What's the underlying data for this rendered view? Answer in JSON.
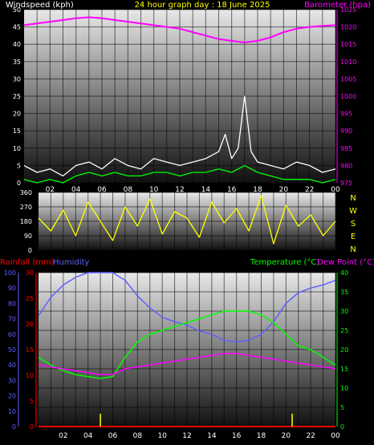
{
  "title": "24 hour graph day : 18 June 2025",
  "colors": {
    "background": "#000000",
    "wind_label": "#ffffff",
    "title": "#ffff00",
    "barometer": "#ff00ff",
    "gust": "#ffffff",
    "avg_wind": "#00ff00",
    "direction": "#ffff00",
    "rainfall": "#ff0000",
    "humidity": "#6060ff",
    "temperature": "#00ff00",
    "dewpoint": "#ff00ff",
    "grid": "#000000"
  },
  "x_axis": {
    "tick_labels": [
      "02",
      "04",
      "06",
      "08",
      "10",
      "12",
      "14",
      "16",
      "18",
      "20",
      "22",
      "00"
    ],
    "range_hours": [
      0,
      24
    ]
  },
  "chart_data": [
    {
      "type": "line",
      "name": "wind-barometer",
      "title": "24 hour graph day : 18 June 2025",
      "left_axis": {
        "label": "Windspeed (kph)",
        "ylim": [
          0,
          50
        ],
        "ticks": [
          0,
          5,
          10,
          15,
          20,
          25,
          30,
          35,
          40,
          45,
          50
        ]
      },
      "right_axis": {
        "label": "Barometer (hpa)",
        "ylim": [
          975,
          1025
        ],
        "ticks": [
          975,
          980,
          985,
          990,
          995,
          1000,
          1005,
          1010,
          1015,
          1020,
          1025
        ]
      },
      "series": [
        {
          "label_key": "barometer",
          "axis": "right",
          "x": [
            0,
            1,
            2,
            3,
            4,
            5,
            6,
            7,
            8,
            9,
            10,
            11,
            12,
            13,
            14,
            15,
            16,
            17,
            18,
            19,
            20,
            21,
            22,
            23,
            24
          ],
          "values": [
            1020.5,
            1021,
            1021.5,
            1022,
            1022.5,
            1022.8,
            1022.5,
            1022,
            1021.5,
            1021,
            1020.5,
            1020,
            1019.5,
            1018.5,
            1017.5,
            1016.5,
            1016,
            1015.5,
            1016,
            1017,
            1018.5,
            1019.5,
            1020,
            1020.3,
            1020.5
          ]
        },
        {
          "label_key": "gust",
          "axis": "left",
          "x": [
            0,
            1,
            2,
            3,
            4,
            5,
            6,
            7,
            8,
            9,
            10,
            11,
            12,
            13,
            14,
            15,
            15.5,
            16,
            16.5,
            17,
            17.5,
            18,
            19,
            20,
            21,
            22,
            23,
            24
          ],
          "values": [
            5,
            3,
            4,
            2,
            5,
            6,
            4,
            7,
            5,
            4,
            7,
            6,
            5,
            6,
            7,
            9,
            14,
            7,
            10,
            25,
            9,
            6,
            5,
            4,
            6,
            5,
            3,
            4
          ]
        },
        {
          "label_key": "avg_wind",
          "axis": "left",
          "x": [
            0,
            1,
            2,
            3,
            4,
            5,
            6,
            7,
            8,
            9,
            10,
            11,
            12,
            13,
            14,
            15,
            16,
            17,
            18,
            19,
            20,
            21,
            22,
            23,
            24
          ],
          "values": [
            1,
            0,
            1,
            0,
            2,
            3,
            2,
            3,
            2,
            2,
            3,
            3,
            2,
            3,
            3,
            4,
            3,
            5,
            3,
            2,
            1,
            1,
            1,
            0,
            1
          ]
        }
      ]
    },
    {
      "type": "line",
      "name": "wind-direction",
      "ylim": [
        0,
        360
      ],
      "y_ticks": [
        0,
        90,
        180,
        270,
        360
      ],
      "right_labels": [
        "N",
        "W",
        "S",
        "E",
        "N"
      ],
      "series": [
        {
          "label_key": "direction",
          "x": [
            0,
            1,
            2,
            3,
            4,
            5,
            6,
            7,
            8,
            9,
            10,
            11,
            12,
            13,
            14,
            15,
            16,
            17,
            18,
            19,
            20,
            21,
            22,
            23,
            24
          ],
          "values": [
            200,
            120,
            250,
            90,
            300,
            180,
            60,
            270,
            150,
            320,
            100,
            240,
            200,
            80,
            300,
            170,
            260,
            120,
            340,
            40,
            280,
            150,
            220,
            90,
            180
          ]
        }
      ]
    },
    {
      "type": "line",
      "name": "temp-humidity",
      "left_axis_rain": {
        "label": "Rainfall (mm)",
        "ylim": [
          0,
          30
        ],
        "ticks": [
          0,
          5,
          10,
          15,
          20,
          25,
          30
        ]
      },
      "left_axis_humidity": {
        "label": "Humidity",
        "ylim": [
          0,
          100
        ],
        "ticks": [
          0,
          10,
          20,
          30,
          40,
          50,
          60,
          70,
          80,
          90,
          100
        ]
      },
      "right_axis": {
        "label": "Temperature (°C)",
        "label2": "Dew Point (°C)",
        "ylim": [
          0,
          40
        ],
        "ticks": [
          0,
          5,
          10,
          15,
          20,
          25,
          30,
          35,
          40
        ]
      },
      "series": [
        {
          "label_key": "humidity",
          "axis": "humidity",
          "x": [
            0,
            1,
            2,
            3,
            4,
            5,
            6,
            7,
            8,
            9,
            10,
            11,
            12,
            13,
            14,
            15,
            16,
            17,
            18,
            19,
            20,
            21,
            22,
            23,
            24
          ],
          "values": [
            72,
            84,
            92,
            97,
            100,
            100,
            100,
            95,
            85,
            77,
            71,
            68,
            66,
            62,
            60,
            56,
            55,
            56,
            60,
            68,
            80,
            87,
            90,
            92,
            95
          ]
        },
        {
          "label_key": "temperature",
          "axis": "temp",
          "x": [
            0,
            1,
            2,
            3,
            4,
            5,
            6,
            7,
            8,
            9,
            10,
            11,
            12,
            13,
            14,
            15,
            16,
            17,
            18,
            19,
            20,
            21,
            22,
            23,
            24
          ],
          "values": [
            18,
            16,
            14.5,
            13.5,
            13,
            12.5,
            13,
            18,
            22,
            24,
            25,
            26,
            27,
            28,
            29,
            30,
            30,
            30,
            29,
            27,
            24,
            21,
            20,
            18,
            16
          ]
        },
        {
          "label_key": "dewpoint",
          "axis": "temp",
          "x": [
            0,
            1,
            2,
            3,
            4,
            5,
            6,
            7,
            8,
            9,
            10,
            11,
            12,
            13,
            14,
            15,
            16,
            17,
            18,
            19,
            20,
            21,
            22,
            23,
            24
          ],
          "values": [
            16,
            15.5,
            15,
            14.5,
            14,
            13.5,
            13.5,
            15,
            15.5,
            16,
            16.5,
            17,
            17.5,
            18,
            18.5,
            19,
            19,
            18.5,
            18,
            17.5,
            17,
            16.5,
            16,
            15.5,
            15
          ]
        },
        {
          "label_key": "rainfall",
          "axis": "rain",
          "x": [
            0,
            24
          ],
          "values": [
            0,
            0
          ]
        }
      ],
      "rain_markers_hours": [
        5,
        20.5
      ]
    }
  ]
}
